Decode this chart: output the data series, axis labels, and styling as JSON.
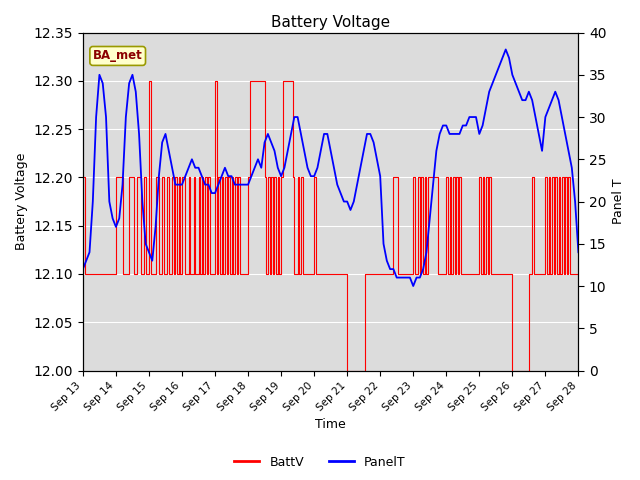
{
  "title": "Battery Voltage",
  "xlabel": "Time",
  "ylabel_left": "Battery Voltage",
  "ylabel_right": "Panel T",
  "ylim_left": [
    12.0,
    12.35
  ],
  "ylim_right": [
    0,
    40
  ],
  "yticks_left": [
    12.0,
    12.05,
    12.1,
    12.15,
    12.2,
    12.25,
    12.3,
    12.35
  ],
  "yticks_right": [
    0,
    5,
    10,
    15,
    20,
    25,
    30,
    35,
    40
  ],
  "xtick_labels": [
    "Sep 13",
    "Sep 14",
    "Sep 15",
    "Sep 16",
    "Sep 17",
    "Sep 18",
    "Sep 19",
    "Sep 20",
    "Sep 21",
    "Sep 22",
    "Sep 23",
    "Sep 24",
    "Sep 25",
    "Sep 26",
    "Sep 27",
    "Sep 28"
  ],
  "background_color": "#ffffff",
  "plot_bg_color": "#dcdcdc",
  "annotation_box": {
    "text": "BA_met",
    "facecolor": "#ffffcc",
    "edgecolor": "#999900"
  },
  "battv_color": "red",
  "panelt_color": "blue",
  "legend_labels": [
    "BattV",
    "PanelT"
  ],
  "battv_x": [
    0.0,
    0.05,
    0.1,
    0.15,
    0.2,
    0.25,
    0.3,
    0.35,
    0.4,
    0.45,
    0.5,
    0.55,
    0.6,
    0.65,
    0.7,
    0.75,
    0.8,
    0.85,
    0.9,
    0.95,
    1.0,
    1.05,
    1.1,
    1.15,
    1.2,
    1.25,
    1.3,
    1.35,
    1.4,
    1.45,
    1.5,
    1.55,
    1.6,
    1.65,
    1.7,
    1.75,
    1.8,
    1.85,
    1.9,
    1.95,
    2.0,
    2.05,
    2.1,
    2.15,
    2.2,
    2.25,
    2.3,
    2.35,
    2.4,
    2.45,
    2.5,
    2.55,
    2.6,
    2.65,
    2.7,
    2.75,
    2.8,
    2.85,
    2.9,
    2.95,
    3.0,
    3.05,
    3.1,
    3.15,
    3.2,
    3.25,
    3.3,
    3.35,
    3.4,
    3.45,
    3.5,
    3.55,
    3.6,
    3.65,
    3.7,
    3.75,
    3.8,
    3.85,
    3.9,
    3.95,
    4.0,
    4.05,
    4.1,
    4.15,
    4.2,
    4.25,
    4.3,
    4.35,
    4.4,
    4.45,
    4.5,
    4.55,
    4.6,
    4.65,
    4.7,
    4.75,
    4.8,
    4.85,
    4.9,
    4.95,
    5.0,
    5.05,
    5.1,
    5.15,
    5.2,
    5.25,
    5.3,
    5.35,
    5.4,
    5.45,
    5.5,
    5.55,
    5.6,
    5.65,
    5.7,
    5.75,
    5.8,
    5.85,
    5.9,
    5.95,
    6.0,
    6.05,
    6.1,
    6.15,
    6.2,
    6.25,
    6.3,
    6.35,
    6.4,
    6.45,
    6.5,
    6.55,
    6.6,
    6.65,
    6.7,
    6.75,
    6.8,
    6.85,
    6.9,
    6.95,
    7.0,
    7.05,
    7.1,
    7.15,
    7.2,
    7.25,
    7.3,
    7.35,
    7.4,
    7.45,
    7.5,
    7.55,
    7.6,
    7.65,
    7.7,
    7.75,
    7.8,
    7.85,
    7.9,
    7.95,
    8.0,
    8.05,
    8.1,
    8.15,
    8.2,
    8.25,
    8.3,
    8.35,
    8.4,
    8.45,
    8.5,
    8.55,
    8.6,
    8.65,
    8.7,
    8.75,
    8.8,
    8.85,
    8.9,
    8.95,
    9.0,
    9.05,
    9.1,
    9.15,
    9.2,
    9.25,
    9.3,
    9.35,
    9.4,
    9.45,
    9.5,
    9.55,
    9.6,
    9.65,
    9.7,
    9.75,
    9.8,
    9.85,
    9.9,
    9.95,
    10.0,
    10.05,
    10.1,
    10.15,
    10.2,
    10.25,
    10.3,
    10.35,
    10.4,
    10.45,
    10.5,
    10.55,
    10.6,
    10.65,
    10.7,
    10.75,
    10.8,
    10.85,
    10.9,
    10.95,
    11.0,
    11.05,
    11.1,
    11.15,
    11.2,
    11.25,
    11.3,
    11.35,
    11.4,
    11.45,
    11.5,
    11.55,
    11.6,
    11.65,
    11.7,
    11.75,
    11.8,
    11.85,
    11.9,
    11.95,
    12.0,
    12.05,
    12.1,
    12.15,
    12.2,
    12.25,
    12.3,
    12.35,
    12.4,
    12.45,
    12.5,
    12.55,
    12.6,
    12.65,
    12.7,
    12.75,
    12.8,
    12.85,
    12.9,
    12.95,
    13.0,
    13.05,
    13.1,
    13.15,
    13.2,
    13.25,
    13.3,
    13.35,
    13.4,
    13.45,
    13.5,
    13.55,
    13.6,
    13.65,
    13.7,
    13.75,
    13.8,
    13.85,
    13.9,
    13.95,
    14.0,
    14.05,
    14.1,
    14.15,
    14.2,
    14.25,
    14.3,
    14.35,
    14.4,
    14.45,
    14.5,
    14.55,
    14.6,
    14.65,
    14.7,
    14.75,
    14.8,
    14.85,
    14.9,
    14.95,
    15.0
  ],
  "battv_y": [
    12.2,
    12.1,
    12.1,
    12.1,
    12.1,
    12.1,
    12.1,
    12.1,
    12.1,
    12.1,
    12.1,
    12.1,
    12.1,
    12.1,
    12.1,
    12.1,
    12.1,
    12.1,
    12.1,
    12.1,
    12.2,
    12.2,
    12.2,
    12.2,
    12.1,
    12.1,
    12.1,
    12.1,
    12.2,
    12.2,
    12.2,
    12.1,
    12.1,
    12.2,
    12.2,
    12.1,
    12.1,
    12.2,
    12.1,
    12.1,
    12.3,
    12.1,
    12.1,
    12.1,
    12.2,
    12.2,
    12.1,
    12.1,
    12.2,
    12.1,
    12.1,
    12.2,
    12.1,
    12.1,
    12.2,
    12.1,
    12.2,
    12.1,
    12.2,
    12.1,
    12.2,
    12.2,
    12.1,
    12.1,
    12.2,
    12.1,
    12.1,
    12.2,
    12.1,
    12.1,
    12.2,
    12.1,
    12.2,
    12.1,
    12.2,
    12.1,
    12.2,
    12.1,
    12.1,
    12.1,
    12.3,
    12.1,
    12.2,
    12.1,
    12.2,
    12.1,
    12.2,
    12.1,
    12.2,
    12.1,
    12.2,
    12.1,
    12.2,
    12.1,
    12.2,
    12.1,
    12.1,
    12.1,
    12.1,
    12.1,
    12.2,
    12.3,
    12.3,
    12.3,
    12.3,
    12.3,
    12.3,
    12.3,
    12.3,
    12.3,
    12.2,
    12.1,
    12.2,
    12.1,
    12.2,
    12.1,
    12.2,
    12.1,
    12.2,
    12.1,
    12.2,
    12.3,
    12.3,
    12.3,
    12.3,
    12.3,
    12.3,
    12.2,
    12.1,
    12.1,
    12.2,
    12.1,
    12.2,
    12.1,
    12.1,
    12.1,
    12.1,
    12.1,
    12.1,
    12.1,
    12.2,
    12.1,
    12.1,
    12.1,
    12.1,
    12.1,
    12.1,
    12.1,
    12.1,
    12.1,
    12.1,
    12.1,
    12.1,
    12.1,
    12.1,
    12.1,
    12.1,
    12.1,
    12.1,
    12.1,
    12.0,
    12.0,
    12.0,
    12.0,
    12.0,
    12.0,
    12.0,
    12.0,
    12.0,
    12.0,
    12.0,
    12.1,
    12.1,
    12.1,
    12.1,
    12.1,
    12.1,
    12.1,
    12.1,
    12.1,
    12.1,
    12.1,
    12.1,
    12.1,
    12.1,
    12.1,
    12.1,
    12.1,
    12.2,
    12.2,
    12.2,
    12.1,
    12.1,
    12.1,
    12.1,
    12.1,
    12.1,
    12.1,
    12.1,
    12.1,
    12.2,
    12.1,
    12.1,
    12.2,
    12.1,
    12.2,
    12.1,
    12.2,
    12.1,
    12.2,
    12.2,
    12.2,
    12.2,
    12.2,
    12.2,
    12.1,
    12.1,
    12.1,
    12.1,
    12.1,
    12.2,
    12.1,
    12.2,
    12.1,
    12.2,
    12.1,
    12.2,
    12.1,
    12.2,
    12.1,
    12.1,
    12.1,
    12.1,
    12.1,
    12.1,
    12.1,
    12.1,
    12.1,
    12.1,
    12.1,
    12.2,
    12.1,
    12.2,
    12.1,
    12.2,
    12.1,
    12.2,
    12.1,
    12.1,
    12.1,
    12.1,
    12.1,
    12.1,
    12.1,
    12.1,
    12.1,
    12.1,
    12.1,
    12.1,
    12.1,
    12.0,
    12.0,
    12.0,
    12.0,
    12.0,
    12.0,
    12.0,
    12.0,
    12.0,
    12.0,
    12.1,
    12.1,
    12.2,
    12.1,
    12.1,
    12.1,
    12.1,
    12.1,
    12.1,
    12.1,
    12.2,
    12.1,
    12.2,
    12.1,
    12.2,
    12.1,
    12.2,
    12.1,
    12.2,
    12.1,
    12.2,
    12.1,
    12.2,
    12.1,
    12.2,
    12.1,
    12.1,
    12.1,
    12.1,
    12.1,
    12.1
  ],
  "panelt_x": [
    0.0,
    0.1,
    0.2,
    0.3,
    0.4,
    0.5,
    0.6,
    0.7,
    0.8,
    0.9,
    1.0,
    1.1,
    1.2,
    1.3,
    1.4,
    1.5,
    1.6,
    1.7,
    1.8,
    1.9,
    2.0,
    2.1,
    2.2,
    2.3,
    2.4,
    2.5,
    2.6,
    2.7,
    2.8,
    2.9,
    3.0,
    3.1,
    3.2,
    3.3,
    3.4,
    3.5,
    3.6,
    3.7,
    3.8,
    3.9,
    4.0,
    4.1,
    4.2,
    4.3,
    4.4,
    4.5,
    4.6,
    4.7,
    4.8,
    4.9,
    5.0,
    5.1,
    5.2,
    5.3,
    5.4,
    5.5,
    5.6,
    5.7,
    5.8,
    5.9,
    6.0,
    6.1,
    6.2,
    6.3,
    6.4,
    6.5,
    6.6,
    6.7,
    6.8,
    6.9,
    7.0,
    7.1,
    7.2,
    7.3,
    7.4,
    7.5,
    7.6,
    7.7,
    7.8,
    7.9,
    8.0,
    8.1,
    8.2,
    8.3,
    8.4,
    8.5,
    8.6,
    8.7,
    8.8,
    8.9,
    9.0,
    9.1,
    9.2,
    9.3,
    9.4,
    9.5,
    9.6,
    9.7,
    9.8,
    9.9,
    10.0,
    10.1,
    10.2,
    10.3,
    10.4,
    10.5,
    10.6,
    10.7,
    10.8,
    10.9,
    11.0,
    11.1,
    11.2,
    11.3,
    11.4,
    11.5,
    11.6,
    11.7,
    11.8,
    11.9,
    12.0,
    12.1,
    12.2,
    12.3,
    12.4,
    12.5,
    12.6,
    12.7,
    12.8,
    12.9,
    13.0,
    13.1,
    13.2,
    13.3,
    13.4,
    13.5,
    13.6,
    13.7,
    13.8,
    13.9,
    14.0,
    14.1,
    14.2,
    14.3,
    14.4,
    14.5,
    14.6,
    14.7,
    14.8,
    14.9,
    15.0
  ],
  "panelt_y": [
    12,
    13,
    14,
    20,
    30,
    35,
    34,
    30,
    20,
    18,
    17,
    18,
    22,
    30,
    34,
    35,
    33,
    28,
    20,
    15,
    14,
    13,
    17,
    23,
    27,
    28,
    26,
    24,
    22,
    22,
    22,
    23,
    24,
    25,
    24,
    24,
    23,
    22,
    22,
    21,
    21,
    22,
    23,
    24,
    23,
    23,
    22,
    22,
    22,
    22,
    22,
    23,
    24,
    25,
    24,
    27,
    28,
    27,
    26,
    24,
    23,
    24,
    26,
    28,
    30,
    30,
    28,
    26,
    24,
    23,
    23,
    24,
    26,
    28,
    28,
    26,
    24,
    22,
    21,
    20,
    20,
    19,
    20,
    22,
    24,
    26,
    28,
    28,
    27,
    25,
    23,
    15,
    13,
    12,
    12,
    11,
    11,
    11,
    11,
    11,
    10,
    11,
    11,
    12,
    14,
    18,
    22,
    26,
    28,
    29,
    29,
    28,
    28,
    28,
    28,
    29,
    29,
    30,
    30,
    30,
    28,
    29,
    31,
    33,
    34,
    35,
    36,
    37,
    38,
    37,
    35,
    34,
    33,
    32,
    32,
    33,
    32,
    30,
    28,
    26,
    30,
    31,
    32,
    33,
    32,
    30,
    28,
    26,
    24,
    20,
    14
  ]
}
